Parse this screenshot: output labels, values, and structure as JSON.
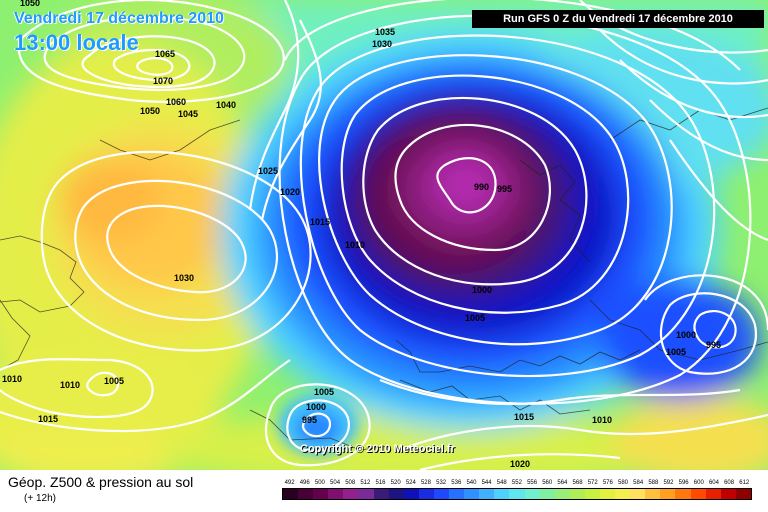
{
  "header": {
    "date": "Vendredi 17 décembre 2010",
    "time": "13:00 locale",
    "run": "Run GFS 0 Z du Vendredi 17 décembre 2010"
  },
  "copyright": "Copyright © 2010 Meteociel.fr",
  "legend": {
    "title": "Géop. Z500 & pression au sol",
    "subtitle": "(+ 12h)",
    "scale_values": [
      "492",
      "496",
      "500",
      "504",
      "508",
      "512",
      "516",
      "520",
      "524",
      "528",
      "532",
      "536",
      "540",
      "544",
      "548",
      "552",
      "556",
      "560",
      "564",
      "568",
      "572",
      "576",
      "580",
      "584",
      "588",
      "592",
      "596",
      "600",
      "604",
      "608",
      "612"
    ],
    "scale_colors": [
      "#2a0020",
      "#480036",
      "#64004c",
      "#7e1070",
      "#94208e",
      "#7a2a9a",
      "#3a1c78",
      "#1c1480",
      "#1010b8",
      "#1a2ce0",
      "#2048ff",
      "#2870ff",
      "#3090ff",
      "#40b0ff",
      "#50d0ff",
      "#60e6ee",
      "#70f0cc",
      "#80f0a0",
      "#98ee78",
      "#b0ee58",
      "#c8f040",
      "#e4f040",
      "#f4ee50",
      "#ffe060",
      "#ffc040",
      "#ffa020",
      "#ff7810",
      "#ff4a00",
      "#e82000",
      "#c00000",
      "#900000"
    ]
  },
  "isobars": [
    {
      "value": "1050"
    },
    {
      "value": "1065"
    },
    {
      "value": "1070"
    },
    {
      "value": "1050"
    },
    {
      "value": "1060"
    },
    {
      "value": "1045"
    },
    {
      "value": "1040"
    },
    {
      "value": "1035"
    },
    {
      "value": "1030"
    },
    {
      "value": "1025"
    },
    {
      "value": "1020"
    },
    {
      "value": "1015"
    },
    {
      "value": "1010"
    },
    {
      "value": "1030"
    },
    {
      "value": "990"
    },
    {
      "value": "995"
    },
    {
      "value": "1000"
    },
    {
      "value": "1005"
    },
    {
      "value": "1000"
    },
    {
      "value": "1005"
    },
    {
      "value": "995"
    },
    {
      "value": "1010"
    },
    {
      "value": "1010"
    },
    {
      "value": "1005"
    },
    {
      "value": "1015"
    },
    {
      "value": "1005"
    },
    {
      "value": "1000"
    },
    {
      "value": "995"
    },
    {
      "value": "1015"
    },
    {
      "value": "1010"
    },
    {
      "value": "1020"
    }
  ]
}
